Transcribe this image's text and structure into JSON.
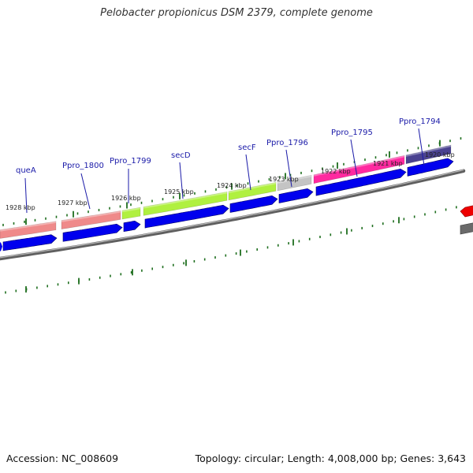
{
  "title": "Pelobacter propionicus DSM 2379, complete genome",
  "footer": {
    "accession": "Accession: NC_008609",
    "topology": "Topology: circular; Length: 4,008,000 bp; Genes: 3,643"
  },
  "colors": {
    "backbone": "#7a7a7a",
    "cds_arrow": "#0000ee",
    "tick": "#1e6e1e",
    "gene_label": "#1a1aa8",
    "marker_label": "#222222",
    "red_feature": "#ee0000"
  },
  "genes": [
    {
      "name": "queA",
      "color": "#ef8a8a"
    },
    {
      "name": "Ppro_1800",
      "color": "#ef8a8a"
    },
    {
      "name": "",
      "color": "#b0f040"
    },
    {
      "name": "Ppro_1799",
      "color": "#b0f040"
    },
    {
      "name": "secD",
      "color": "#b0f040"
    },
    {
      "name": "secF",
      "color": "#b0f040"
    },
    {
      "name": "Ppro_1796",
      "color": "#c4c4c4"
    },
    {
      "name": "Ppro_1795",
      "color": "#ff2aa0"
    },
    {
      "name": "Ppro_1794",
      "color": "#4a4290"
    }
  ],
  "kbp_markers": [
    "1928 kbp",
    "1927 kbp",
    "1926 kbp",
    "1925 kbp",
    "1924 kbp",
    "1923 kbp",
    "1922 kbp",
    "1921 kbp",
    "1920 kbp"
  ]
}
